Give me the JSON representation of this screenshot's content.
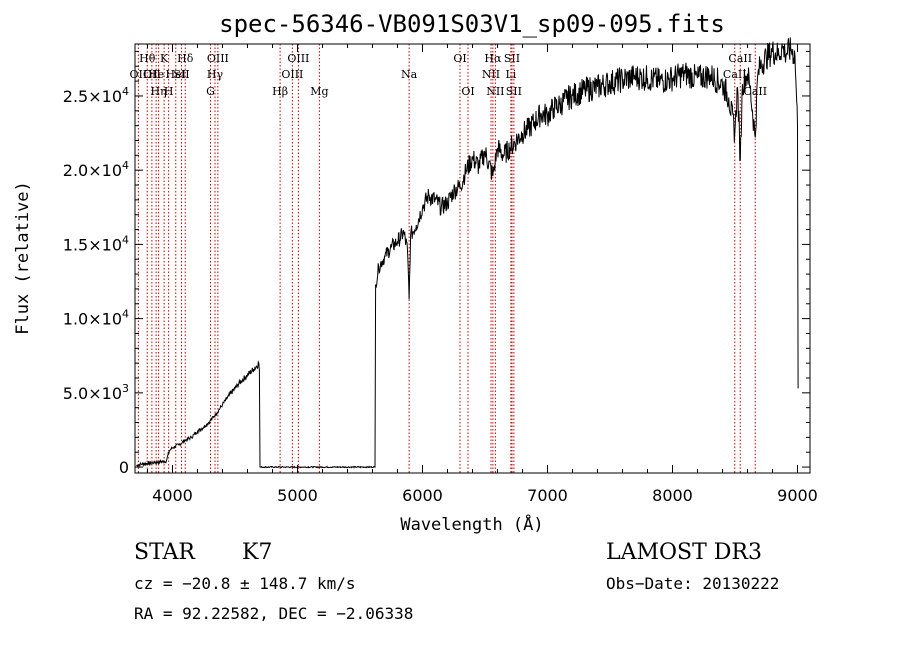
{
  "chart_data": {
    "type": "line",
    "title": "spec-56346-VB091S03V1_sp09-095.fits",
    "xlabel": "Wavelength (Å)",
    "ylabel": "Flux (relative)",
    "xlim": [
      3700,
      9100
    ],
    "ylim": [
      -400,
      28500
    ],
    "x_ticks": [
      4000,
      5000,
      6000,
      7000,
      8000,
      9000
    ],
    "y_ticks": [
      {
        "value": 0,
        "mantissa": "0",
        "exp": ""
      },
      {
        "value": 5000,
        "mantissa": "5.0×10",
        "exp": "3"
      },
      {
        "value": 10000,
        "mantissa": "1.0×10",
        "exp": "4"
      },
      {
        "value": 15000,
        "mantissa": "1.5×10",
        "exp": "4"
      },
      {
        "value": 20000,
        "mantissa": "2.0×10",
        "exp": "4"
      },
      {
        "value": 25000,
        "mantissa": "2.5×10",
        "exp": "4"
      }
    ],
    "spectrum": {
      "name": "flux",
      "x": [
        3710,
        3750,
        3800,
        3850,
        3900,
        3950,
        3975,
        4000,
        4050,
        4100,
        4150,
        4200,
        4250,
        4300,
        4350,
        4400,
        4450,
        4500,
        4550,
        4600,
        4650,
        4690,
        4695,
        4700,
        5620,
        5625,
        5650,
        5700,
        5750,
        5800,
        5850,
        5880,
        5893,
        5905,
        5950,
        6000,
        6050,
        6100,
        6150,
        6200,
        6250,
        6300,
        6350,
        6400,
        6450,
        6500,
        6563,
        6600,
        6650,
        6700,
        6750,
        6800,
        6850,
        6900,
        6950,
        7000,
        7050,
        7100,
        7150,
        7200,
        7300,
        7400,
        7500,
        7600,
        7700,
        7800,
        7900,
        8000,
        8100,
        8200,
        8300,
        8400,
        8450,
        8498,
        8520,
        8542,
        8560,
        8600,
        8620,
        8662,
        8680,
        8700,
        8750,
        8800,
        8850,
        8880,
        8900,
        8950,
        8980,
        8990,
        9000,
        9005
      ],
      "y": [
        100,
        200,
        250,
        300,
        350,
        400,
        1100,
        1300,
        1500,
        1800,
        2000,
        2400,
        2700,
        3100,
        3600,
        4200,
        4800,
        5300,
        5800,
        6200,
        6600,
        7000,
        6500,
        0,
        0,
        12300,
        13500,
        14200,
        14800,
        15200,
        15800,
        14600,
        11300,
        15600,
        16300,
        17500,
        18300,
        18000,
        17500,
        17800,
        18600,
        18900,
        20000,
        20800,
        20300,
        21200,
        19600,
        21500,
        21000,
        21500,
        22000,
        22500,
        22800,
        23300,
        23800,
        23700,
        24200,
        24400,
        24800,
        25000,
        25400,
        25600,
        25900,
        26100,
        26300,
        26200,
        26000,
        26200,
        26500,
        26200,
        26400,
        25800,
        24900,
        22500,
        25600,
        20700,
        25800,
        26500,
        25600,
        22200,
        26200,
        27000,
        27600,
        28000,
        27800,
        28300,
        27900,
        28100,
        27700,
        25300,
        23000,
        5300
      ]
    },
    "line_markers": [
      {
        "wl": 3727,
        "label": "OII",
        "row": 2
      },
      {
        "wl": 3798,
        "label": "Hθ",
        "row": 1
      },
      {
        "wl": 3835,
        "label": "OII",
        "row": 2
      },
      {
        "wl": 3869,
        "label": "He",
        "row": 2
      },
      {
        "wl": 3889,
        "label": "Hη",
        "row": 3
      },
      {
        "wl": 3933,
        "label": "K",
        "row": 1
      },
      {
        "wl": 3969,
        "label": "H",
        "row": 3
      },
      {
        "wl": 4026,
        "label": "HeI",
        "row": 2
      },
      {
        "wl": 4072,
        "label": "SII",
        "row": 2
      },
      {
        "wl": 4102,
        "label": "Hδ",
        "row": 1
      },
      {
        "wl": 4304,
        "label": "G",
        "row": 3
      },
      {
        "wl": 4340,
        "label": "Hγ",
        "row": 2
      },
      {
        "wl": 4363,
        "label": "OIII",
        "row": 1
      },
      {
        "wl": 4861,
        "label": "Hβ",
        "row": 3
      },
      {
        "wl": 4959,
        "label": "OIII",
        "row": 2
      },
      {
        "wl": 5007,
        "label": "OIII",
        "row": 1
      },
      {
        "wl": 5175,
        "label": "Mg",
        "row": 3
      },
      {
        "wl": 5893,
        "label": "Na",
        "row": 2
      },
      {
        "wl": 6300,
        "label": "OI",
        "row": 1
      },
      {
        "wl": 6364,
        "label": "OI",
        "row": 3
      },
      {
        "wl": 6548,
        "label": "NII",
        "row": 2
      },
      {
        "wl": 6563,
        "label": "Hα",
        "row": 1
      },
      {
        "wl": 6583,
        "label": "NII",
        "row": 3
      },
      {
        "wl": 6707,
        "label": "Li",
        "row": 2
      },
      {
        "wl": 6716,
        "label": "SII",
        "row": 1
      },
      {
        "wl": 6731,
        "label": "SII",
        "row": 3
      },
      {
        "wl": 8498,
        "label": "CaII",
        "row": 2
      },
      {
        "wl": 8542,
        "label": "CaII",
        "row": 1
      },
      {
        "wl": 8662,
        "label": "CaII",
        "row": 3
      }
    ]
  },
  "info": {
    "class_label": "STAR",
    "subclass": "K7",
    "survey": "LAMOST DR3",
    "cz": "cz = −20.8 ± 148.7 km/s",
    "obs_date": "Obs−Date: 20130222",
    "coords": "RA =  92.22582, DEC =  −2.06338"
  }
}
